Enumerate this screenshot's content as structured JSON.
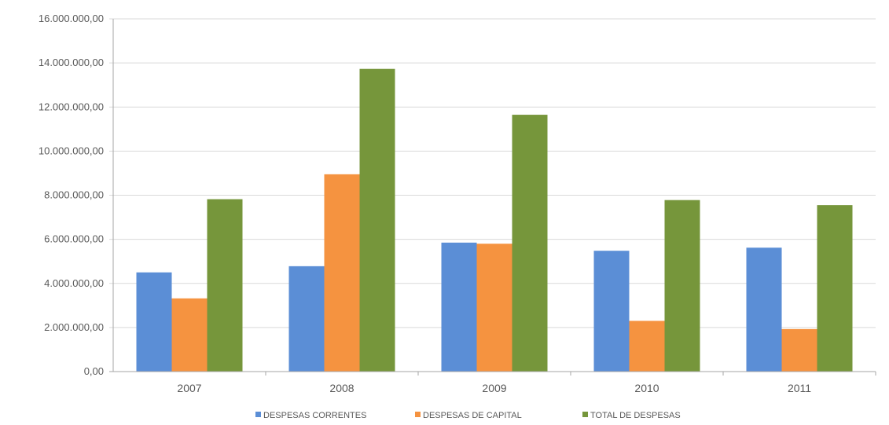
{
  "chart_data": {
    "type": "bar",
    "categories": [
      "2007",
      "2008",
      "2009",
      "2010",
      "2011"
    ],
    "series": [
      {
        "name": "DESPESAS CORRENTES",
        "color": "#5b8ed6",
        "values": [
          4500000,
          4780000,
          5850000,
          5480000,
          5620000
        ]
      },
      {
        "name": "DESPESAS DE CAPITAL",
        "color": "#f59340",
        "values": [
          3320000,
          8950000,
          5800000,
          2300000,
          1930000
        ]
      },
      {
        "name": "TOTAL DE DESPESAS",
        "color": "#76963b",
        "values": [
          7820000,
          13730000,
          11650000,
          7780000,
          7550000
        ]
      }
    ],
    "y_ticks": [
      "0,00",
      "2.000.000,00",
      "4.000.000,00",
      "6.000.000,00",
      "8.000.000,00",
      "10.000.000,00",
      "12.000.000,00",
      "14.000.000,00",
      "16.000.000,00"
    ],
    "ylim": [
      0,
      16000000
    ],
    "grid": true,
    "legend_position": "bottom",
    "gridline_color": "#d9d9d9",
    "axis_color": "#a6a6a6"
  }
}
